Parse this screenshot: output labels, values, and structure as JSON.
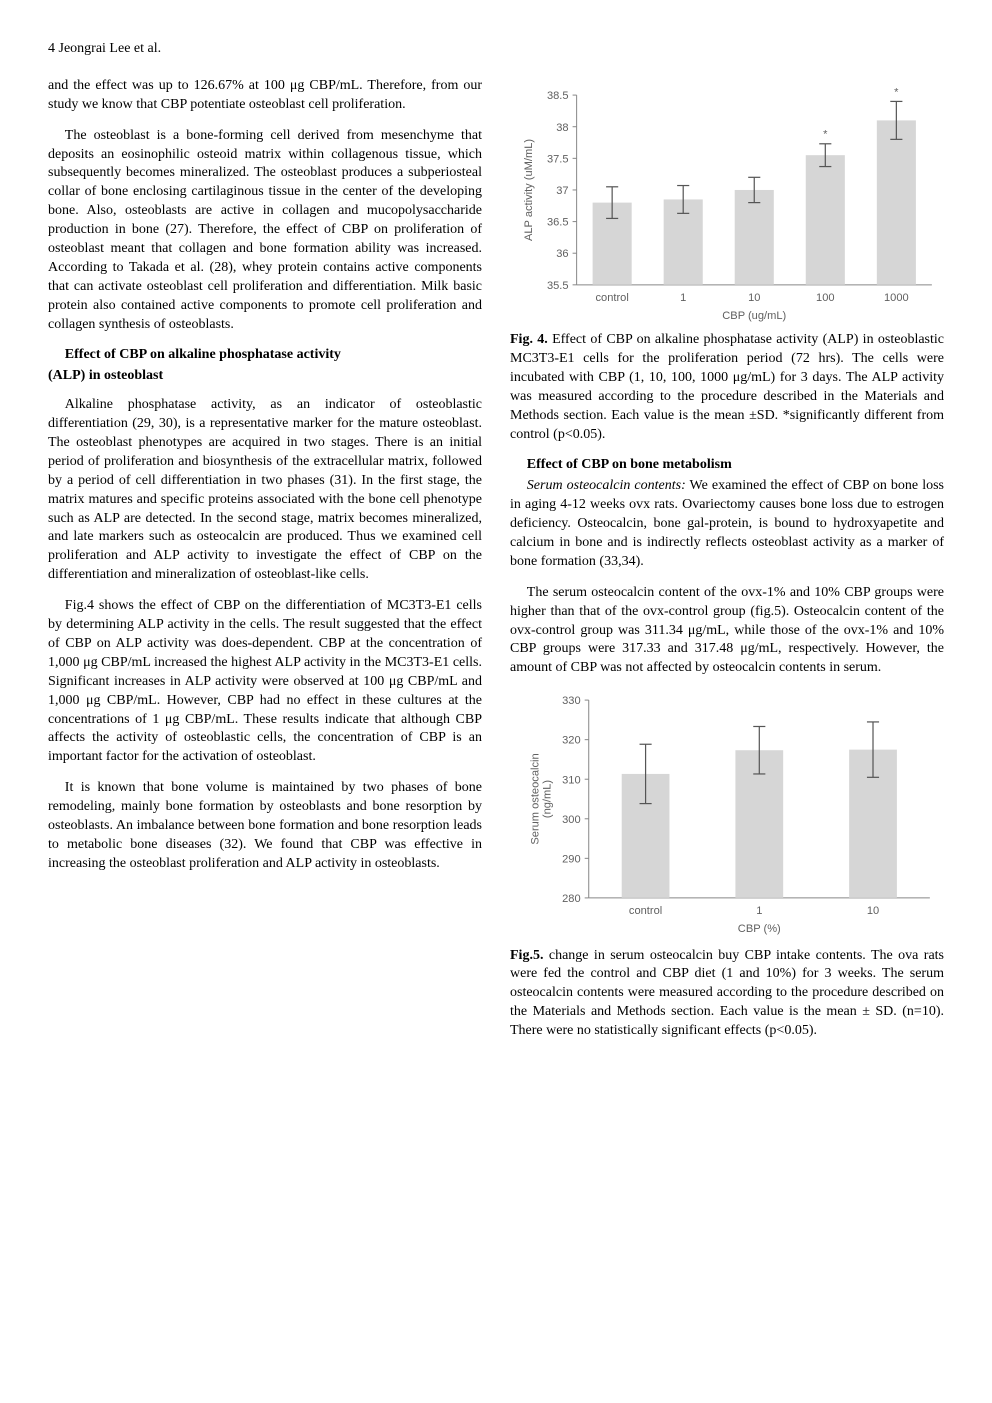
{
  "header": {
    "text": "4     Jeongrai Lee et al."
  },
  "left": {
    "p1": "and the effect was up to 126.67% at 100 μg CBP/mL. Therefore, from our study we know that CBP potentiate osteoblast cell proliferation.",
    "p2": "The osteoblast is a bone-forming cell derived from mesenchyme that deposits an eosinophilic osteoid matrix within collagenous tissue, which subsequently becomes mineralized. The osteoblast produces a subperiosteal collar of bone enclosing cartilaginous tissue in the center of the developing bone. Also, osteoblasts are active in collagen and mucopolysaccharide production in bone (27). Therefore, the effect of CBP on proliferation of osteoblast meant that collagen and bone formation ability was increased. According to Takada et al. (28), whey protein contains active components that can activate osteoblast cell proliferation and differentiation. Milk basic protein also contained active components to promote cell proliferation and collagen synthesis of osteoblasts.",
    "h1a": "Effect of CBP on alkaline phosphatase activity",
    "h1b": "(ALP) in osteoblast",
    "p3": "Alkaline phosphatase activity, as an indicator of osteoblastic differentiation (29, 30), is a representative marker for the mature osteoblast. The osteoblast phenotypes are acquired in two stages. There is an initial period of proliferation and biosynthesis of the extracellular matrix, followed by a period of cell differentiation in two phases (31). In the first stage, the matrix matures and specific proteins associated with the bone cell phenotype such as ALP are detected. In the second stage, matrix becomes mineralized, and late markers such as osteocalcin are produced. Thus we examined cell proliferation and ALP activity to investigate the effect of CBP on the differentiation and mineralization of osteoblast-like cells.",
    "p4": "Fig.4 shows the effect of CBP on the differentiation of MC3T3-E1 cells by determining ALP activity in the cells. The result suggested that the effect of CBP on ALP activity was does-dependent. CBP at the concentration of 1,000 μg CBP/mL increased the highest ALP activity in the MC3T3-E1 cells. Significant increases in ALP activity were observed at 100 μg CBP/mL and 1,000 μg CBP/mL. However, CBP had no effect in these cultures at the concentrations of 1 μg CBP/mL. These results indicate that although CBP affects the activity of osteoblastic cells, the concentration of CBP is an important factor for the activation of osteoblast.",
    "p5": "It is known that bone volume is maintained by two phases of bone remodeling, mainly bone formation by osteoblasts and bone resorption by osteoblasts. An imbalance between bone formation and bone resorption leads to metabolic bone diseases (32). We found that CBP was effective in increasing the osteoblast proliferation and ALP activity in osteoblasts."
  },
  "right": {
    "fig4_caption_label": "Fig. 4.",
    "fig4_caption": " Effect of CBP on alkaline phosphatase activity (ALP) in osteoblastic MC3T3-E1 cells for the proliferation period (72 hrs). The cells were incubated with CBP (1, 10, 100, 1000 μg/mL) for 3 days. The ALP activity was measured according to the procedure described in the Materials and Methods section. Each value is the mean ±SD. *significantly different from control (p<0.05).",
    "h2": "Effect of CBP on bone metabolism",
    "p6_lead": "Serum osteocalcin contents:",
    "p6": " We examined the effect of CBP on bone loss in aging 4-12 weeks ovx rats. Ovariectomy causes bone loss due to estrogen deficiency. Osteocalcin, bone gal-protein, is bound to hydroxyapetite and calcium in bone and is indirectly reflects osteoblast activity as a marker of bone formation (33,34).",
    "p7": "The serum osteocalcin content of the ovx-1% and 10% CBP groups were higher than that of the ovx-control group (fig.5). Osteocalcin content of the ovx-control group was 311.34 μg/mL, while those of the ovx-1% and 10% CBP groups were 317.33 and 317.48 μg/mL, respectively. However, the amount of CBP was not affected by osteocalcin contents in serum.",
    "fig5_caption_label": "Fig.5.",
    "fig5_caption": " change in serum osteocalcin buy CBP intake contents. The ova rats were fed the control and CBP diet (1 and 10%) for 3 weeks. The serum osteocalcin contents were measured according to the procedure described on the Materials and Methods section. Each value is the mean ± SD. (n=10). There were no statistically significant effects (p<0.05)."
  },
  "fig4": {
    "type": "bar",
    "ylabel": "ALP activity (uM/mL)",
    "xlabel": "CBP (ug/mL)",
    "categories": [
      "control",
      "1",
      "10",
      "100",
      "1000"
    ],
    "values": [
      36.8,
      36.85,
      37.0,
      37.55,
      38.1
    ],
    "err": [
      0.25,
      0.22,
      0.2,
      0.18,
      0.3
    ],
    "stars": [
      "",
      "",
      "",
      "*",
      "*"
    ],
    "ylim": [
      35.5,
      38.5
    ],
    "yticks": [
      35.5,
      36,
      36.5,
      37,
      37.5,
      38,
      38.5
    ],
    "bar_color": "#d6d6d6",
    "background_color": "#ffffff",
    "axis_color": "#888888",
    "text_color": "#606060",
    "bar_width": 0.55,
    "label_fontsize": 11
  },
  "fig5": {
    "type": "bar",
    "ylabel": "Serum osteocalcin\n(ng/mL)",
    "xlabel": "CBP (%)",
    "categories": [
      "control",
      "1",
      "10"
    ],
    "values": [
      311.34,
      317.33,
      317.48
    ],
    "err": [
      7.5,
      6.0,
      7.0
    ],
    "ylim": [
      280,
      330
    ],
    "yticks": [
      280,
      290,
      300,
      310,
      320,
      330
    ],
    "bar_color": "#d6d6d6",
    "background_color": "#ffffff",
    "axis_color": "#888888",
    "text_color": "#606060",
    "bar_width": 0.42,
    "label_fontsize": 11
  }
}
